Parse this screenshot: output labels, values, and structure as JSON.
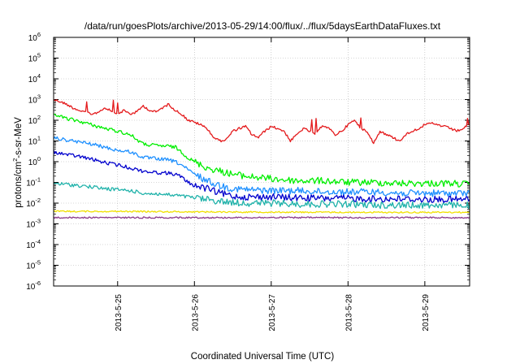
{
  "chart_data": {
    "type": "line",
    "title": "/data/run/goesPlots/archive/2013-05-29/14:00/flux/../flux/5daysEarthDataFluxes.txt",
    "xlabel": "Coordinated Universal Time (UTC)",
    "ylabel": "protons/cm²-s-sr-MeV",
    "ylabel_parts": [
      "protons/cm",
      "2",
      "-s-sr-MeV"
    ],
    "y_scale": "log",
    "ylim": [
      1e-06,
      1000000.0
    ],
    "xlim": [
      "2013-05-24 04:00",
      "2013-05-29 14:00"
    ],
    "grid": true,
    "legend": "none",
    "x_ticks": [
      {
        "x": "2013-05-25",
        "label": "2013-5-25"
      },
      {
        "x": "2013-05-26",
        "label": "2013-5-26"
      },
      {
        "x": "2013-05-27",
        "label": "2013-5-27"
      },
      {
        "x": "2013-05-28",
        "label": "2013-5-28"
      },
      {
        "x": "2013-05-29",
        "label": "2013-5-29"
      }
    ],
    "y_ticks": [
      {
        "value": 1e-06,
        "base": "10",
        "exp": "-6"
      },
      {
        "value": 1e-05,
        "base": "10",
        "exp": "-5"
      },
      {
        "value": 0.0001,
        "base": "10",
        "exp": "-4"
      },
      {
        "value": 0.001,
        "base": "10",
        "exp": "-3"
      },
      {
        "value": 0.01,
        "base": "10",
        "exp": "-2"
      },
      {
        "value": 0.1,
        "base": "10",
        "exp": "-1"
      },
      {
        "value": 1.0,
        "base": "10",
        "exp": "0"
      },
      {
        "value": 10.0,
        "base": "10",
        "exp": "1"
      },
      {
        "value": 100.0,
        "base": "10",
        "exp": "2"
      },
      {
        "value": 1000.0,
        "base": "10",
        "exp": "3"
      },
      {
        "value": 10000.0,
        "base": "10",
        "exp": "4"
      },
      {
        "value": 100000.0,
        "base": "10",
        "exp": "5"
      },
      {
        "value": 1000000.0,
        "base": "10",
        "exp": "6"
      }
    ],
    "series": [
      {
        "color": "#e41a1c",
        "x": [
          "2013-05-24 04:00",
          "2013-05-24 06:00",
          "2013-05-24 08:00",
          "2013-05-24 10:00",
          "2013-05-24 12:00",
          "2013-05-24 14:00",
          "2013-05-24 16:00",
          "2013-05-24 18:00",
          "2013-05-24 20:00",
          "2013-05-24 22:00",
          "2013-05-25 00:00",
          "2013-05-25 02:00",
          "2013-05-25 04:00",
          "2013-05-25 06:00",
          "2013-05-25 08:00",
          "2013-05-25 10:00",
          "2013-05-25 12:00",
          "2013-05-25 14:00",
          "2013-05-25 16:00",
          "2013-05-25 18:00",
          "2013-05-25 20:00",
          "2013-05-25 22:00",
          "2013-05-26 00:00",
          "2013-05-26 02:00",
          "2013-05-26 04:00",
          "2013-05-26 06:00",
          "2013-05-26 08:00",
          "2013-05-26 10:00",
          "2013-05-26 12:00",
          "2013-05-26 14:00",
          "2013-05-26 16:00",
          "2013-05-26 18:00",
          "2013-05-26 20:00",
          "2013-05-26 22:00",
          "2013-05-27 00:00",
          "2013-05-27 02:00",
          "2013-05-27 04:00",
          "2013-05-27 06:00",
          "2013-05-27 08:00",
          "2013-05-27 10:00",
          "2013-05-27 12:00",
          "2013-05-27 14:00",
          "2013-05-27 16:00",
          "2013-05-27 18:00",
          "2013-05-27 20:00",
          "2013-05-27 22:00",
          "2013-05-28 00:00",
          "2013-05-28 02:00",
          "2013-05-28 04:00",
          "2013-05-28 06:00",
          "2013-05-28 08:00",
          "2013-05-28 10:00",
          "2013-05-28 12:00",
          "2013-05-28 14:00",
          "2013-05-28 16:00",
          "2013-05-28 18:00",
          "2013-05-28 20:00",
          "2013-05-28 22:00",
          "2013-05-29 00:00",
          "2013-05-29 02:00",
          "2013-05-29 04:00",
          "2013-05-29 06:00",
          "2013-05-29 08:00",
          "2013-05-29 10:00",
          "2013-05-29 12:00",
          "2013-05-29 14:00"
        ],
        "y": [
          1000,
          800,
          600,
          400,
          300,
          250,
          200,
          250,
          400,
          300,
          200,
          300,
          200,
          250,
          500,
          300,
          250,
          400,
          600,
          300,
          200,
          100,
          80,
          60,
          40,
          15,
          10,
          12,
          30,
          40,
          50,
          20,
          15,
          30,
          50,
          40,
          30,
          10,
          20,
          40,
          30,
          20,
          60,
          40,
          20,
          30,
          60,
          100,
          40,
          30,
          8,
          30,
          20,
          15,
          10,
          20,
          30,
          40,
          60,
          70,
          60,
          50,
          40,
          30,
          40,
          60
        ]
      },
      {
        "color": "#00ee00",
        "x": [
          "2013-05-24 04:00",
          "2013-05-24 08:00",
          "2013-05-24 12:00",
          "2013-05-24 16:00",
          "2013-05-24 20:00",
          "2013-05-25 00:00",
          "2013-05-25 04:00",
          "2013-05-25 08:00",
          "2013-05-25 12:00",
          "2013-05-25 16:00",
          "2013-05-25 18:00",
          "2013-05-25 20:00",
          "2013-05-25 22:00",
          "2013-05-26 00:00",
          "2013-05-26 04:00",
          "2013-05-26 08:00",
          "2013-05-26 12:00",
          "2013-05-26 16:00",
          "2013-05-27 00:00",
          "2013-05-27 08:00",
          "2013-05-27 16:00",
          "2013-05-28 00:00",
          "2013-05-28 08:00",
          "2013-05-28 16:00",
          "2013-05-29 00:00",
          "2013-05-29 08:00",
          "2013-05-29 14:00"
        ],
        "y": [
          200,
          120,
          90,
          60,
          40,
          30,
          20,
          7,
          6,
          5.5,
          5,
          3,
          1.5,
          1,
          0.5,
          0.35,
          0.25,
          0.2,
          0.15,
          0.12,
          0.12,
          0.1,
          0.1,
          0.09,
          0.09,
          0.09,
          0.08
        ]
      },
      {
        "color": "#1e90ff",
        "x": [
          "2013-05-24 04:00",
          "2013-05-24 08:00",
          "2013-05-24 12:00",
          "2013-05-24 16:00",
          "2013-05-24 20:00",
          "2013-05-25 00:00",
          "2013-05-25 04:00",
          "2013-05-25 08:00",
          "2013-05-25 12:00",
          "2013-05-25 16:00",
          "2013-05-25 18:00",
          "2013-05-25 20:00",
          "2013-05-25 22:00",
          "2013-05-26 00:00",
          "2013-05-26 04:00",
          "2013-05-26 08:00",
          "2013-05-26 12:00",
          "2013-05-26 16:00",
          "2013-05-27 00:00",
          "2013-05-27 08:00",
          "2013-05-27 16:00",
          "2013-05-28 00:00",
          "2013-05-28 08:00",
          "2013-05-28 16:00",
          "2013-05-29 00:00",
          "2013-05-29 08:00",
          "2013-05-29 14:00"
        ],
        "y": [
          14,
          11,
          9,
          7,
          5,
          3.5,
          3,
          1.6,
          1.4,
          1.2,
          1.0,
          0.7,
          0.4,
          0.25,
          0.12,
          0.07,
          0.05,
          0.045,
          0.04,
          0.04,
          0.035,
          0.035,
          0.035,
          0.03,
          0.03,
          0.03,
          0.03
        ]
      },
      {
        "color": "#0000cd",
        "x": [
          "2013-05-24 04:00",
          "2013-05-24 08:00",
          "2013-05-24 12:00",
          "2013-05-24 16:00",
          "2013-05-24 20:00",
          "2013-05-25 00:00",
          "2013-05-25 04:00",
          "2013-05-25 08:00",
          "2013-05-25 12:00",
          "2013-05-25 16:00",
          "2013-05-25 18:00",
          "2013-05-25 20:00",
          "2013-05-25 22:00",
          "2013-05-26 00:00",
          "2013-05-26 04:00",
          "2013-05-26 08:00",
          "2013-05-26 12:00",
          "2013-05-26 16:00",
          "2013-05-27 00:00",
          "2013-05-27 08:00",
          "2013-05-27 16:00",
          "2013-05-28 00:00",
          "2013-05-28 08:00",
          "2013-05-28 16:00",
          "2013-05-29 00:00",
          "2013-05-29 08:00",
          "2013-05-29 14:00"
        ],
        "y": [
          3,
          2.2,
          1.8,
          1.3,
          0.9,
          0.7,
          0.5,
          0.35,
          0.3,
          0.28,
          0.25,
          0.18,
          0.1,
          0.07,
          0.05,
          0.03,
          0.022,
          0.02,
          0.02,
          0.018,
          0.017,
          0.017,
          0.016,
          0.016,
          0.015,
          0.015,
          0.015
        ]
      },
      {
        "color": "#20b2aa",
        "x": [
          "2013-05-24 04:00",
          "2013-05-24 08:00",
          "2013-05-24 12:00",
          "2013-05-24 16:00",
          "2013-05-24 20:00",
          "2013-05-25 00:00",
          "2013-05-25 04:00",
          "2013-05-25 08:00",
          "2013-05-25 12:00",
          "2013-05-25 16:00",
          "2013-05-25 20:00",
          "2013-05-26 00:00",
          "2013-05-26 04:00",
          "2013-05-26 08:00",
          "2013-05-26 12:00",
          "2013-05-26 16:00",
          "2013-05-27 00:00",
          "2013-05-27 08:00",
          "2013-05-27 16:00",
          "2013-05-28 00:00",
          "2013-05-28 08:00",
          "2013-05-28 16:00",
          "2013-05-29 00:00",
          "2013-05-29 08:00",
          "2013-05-29 14:00"
        ],
        "y": [
          0.09,
          0.08,
          0.07,
          0.06,
          0.05,
          0.045,
          0.04,
          0.03,
          0.028,
          0.025,
          0.022,
          0.018,
          0.015,
          0.012,
          0.011,
          0.01,
          0.01,
          0.009,
          0.009,
          0.009,
          0.008,
          0.008,
          0.008,
          0.008,
          0.008
        ]
      },
      {
        "color": "#f0e000",
        "x": [
          "2013-05-24 04:00",
          "2013-05-25 00:00",
          "2013-05-26 00:00",
          "2013-05-27 00:00",
          "2013-05-28 00:00",
          "2013-05-29 00:00",
          "2013-05-29 14:00"
        ],
        "y": [
          0.004,
          0.004,
          0.0038,
          0.0037,
          0.0036,
          0.0036,
          0.0036
        ]
      },
      {
        "color": "#8b3a8b",
        "x": [
          "2013-05-24 04:00",
          "2013-05-25 00:00",
          "2013-05-26 00:00",
          "2013-05-27 00:00",
          "2013-05-28 00:00",
          "2013-05-29 00:00",
          "2013-05-29 14:00"
        ],
        "y": [
          0.002,
          0.002,
          0.002,
          0.002,
          0.002,
          0.002,
          0.002
        ]
      }
    ]
  }
}
